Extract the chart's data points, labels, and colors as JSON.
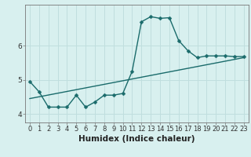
{
  "xlabel": "Humidex (Indice chaleur)",
  "background_color": "#d8f0ef",
  "line_color": "#1a6b6b",
  "grid_color": "#c0dede",
  "x_data": [
    0,
    1,
    2,
    3,
    4,
    5,
    6,
    7,
    8,
    9,
    10,
    11,
    12,
    13,
    14,
    15,
    16,
    17,
    18,
    19,
    20,
    21,
    22,
    23
  ],
  "y_data": [
    4.95,
    4.65,
    4.2,
    4.2,
    4.2,
    4.55,
    4.2,
    4.35,
    4.55,
    4.55,
    4.6,
    5.25,
    6.7,
    6.85,
    6.8,
    6.82,
    6.15,
    5.85,
    5.65,
    5.7,
    5.7,
    5.7,
    5.68,
    5.68
  ],
  "trend_x": [
    0,
    23
  ],
  "trend_y": [
    4.45,
    5.65
  ],
  "xlim": [
    -0.5,
    23.5
  ],
  "ylim": [
    3.75,
    7.2
  ],
  "yticks": [
    4,
    5,
    6
  ],
  "ytick_labels": [
    "4",
    "5",
    "6"
  ],
  "xtick_labels": [
    "0",
    "1",
    "2",
    "3",
    "4",
    "5",
    "6",
    "7",
    "8",
    "9",
    "10",
    "11",
    "12",
    "13",
    "14",
    "15",
    "16",
    "17",
    "18",
    "19",
    "20",
    "21",
    "22",
    "23"
  ],
  "marker_size": 2.5,
  "line_width": 1.0,
  "xlabel_fontsize": 7.5,
  "tick_fontsize": 6.5
}
